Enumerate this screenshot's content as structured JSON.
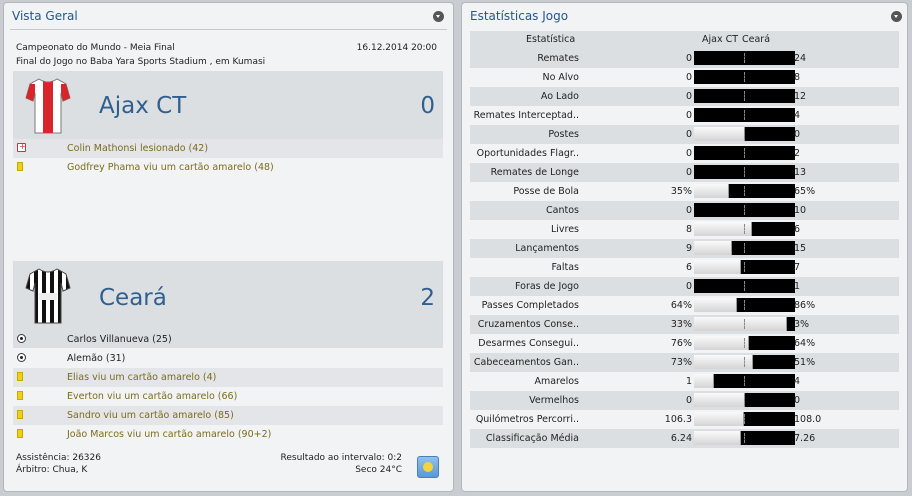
{
  "overview": {
    "title": "Vista Geral",
    "competition": "Campeonato do Mundo - Meia Final",
    "datetime": "16.12.2014 20:00",
    "venue": "Final do Jogo no Baba Yara Sports Stadium , em Kumasi",
    "home": {
      "name": "Ajax CT",
      "score": "0",
      "kit_icon": "red-white-shirt-icon",
      "events": [
        {
          "icon": "injury-icon",
          "text": "Colin Mathonsi lesionado (42)"
        },
        {
          "icon": "yellow-card-icon",
          "text": "Godfrey Phama viu um cartão amarelo (48)"
        }
      ]
    },
    "away": {
      "name": "Ceará",
      "score": "2",
      "kit_icon": "black-white-striped-shirt-icon",
      "events": [
        {
          "icon": "goal-ball-icon",
          "text": "Carlos Villanueva (25)"
        },
        {
          "icon": "goal-ball-icon",
          "text": "Alemão (31)"
        },
        {
          "icon": "yellow-card-icon",
          "text": "Elias viu um cartão amarelo (4)"
        },
        {
          "icon": "yellow-card-icon",
          "text": "Everton viu um cartão amarelo (66)"
        },
        {
          "icon": "yellow-card-icon",
          "text": "Sandro viu um cartão amarelo (85)"
        },
        {
          "icon": "yellow-card-icon",
          "text": "João Marcos viu um cartão amarelo (90+2)"
        }
      ]
    },
    "attendance": "Assistência: 26326",
    "referee": "Árbitro: Chua, K",
    "halftime": "Resultado ao intervalo: 0:2",
    "weather": "Seco 24°C",
    "weather_icon": "sunny-weather-icon"
  },
  "stats": {
    "title": "Estatísticas Jogo",
    "header_stat": "Estatística",
    "header_home": "Ajax CT",
    "header_away": "Ceará",
    "rows": [
      {
        "label": "Remates",
        "home": "0",
        "away": "24",
        "home_share": 0
      },
      {
        "label": "No Alvo",
        "home": "0",
        "away": "8",
        "home_share": 0
      },
      {
        "label": "Ao Lado",
        "home": "0",
        "away": "12",
        "home_share": 0
      },
      {
        "label": "Remates Interceptad..",
        "home": "0",
        "away": "4",
        "home_share": 0
      },
      {
        "label": "Postes",
        "home": "0",
        "away": "0",
        "home_share": 0.5
      },
      {
        "label": "Oportunidades Flagr..",
        "home": "0",
        "away": "2",
        "home_share": 0
      },
      {
        "label": "Remates de Longe",
        "home": "0",
        "away": "13",
        "home_share": 0
      },
      {
        "label": "Posse de Bola",
        "home": "35%",
        "away": "65%",
        "home_share": 0.35
      },
      {
        "label": "Cantos",
        "home": "0",
        "away": "10",
        "home_share": 0
      },
      {
        "label": "Livres",
        "home": "8",
        "away": "6",
        "home_share": 0.571
      },
      {
        "label": "Lançamentos",
        "home": "9",
        "away": "15",
        "home_share": 0.375
      },
      {
        "label": "Faltas",
        "home": "6",
        "away": "7",
        "home_share": 0.462
      },
      {
        "label": "Foras de Jogo",
        "home": "0",
        "away": "1",
        "home_share": 0
      },
      {
        "label": "Passes Completados",
        "home": "64%",
        "away": "86%",
        "home_share": 0.427
      },
      {
        "label": "Cruzamentos Conse..",
        "home": "33%",
        "away": "3%",
        "home_share": 0.917
      },
      {
        "label": "Desarmes Consegui..",
        "home": "76%",
        "away": "64%",
        "home_share": 0.543
      },
      {
        "label": "Cabeceamentos Gan..",
        "home": "73%",
        "away": "51%",
        "home_share": 0.589
      },
      {
        "label": "Amarelos",
        "home": "1",
        "away": "4",
        "home_share": 0.2
      },
      {
        "label": "Vermelhos",
        "home": "0",
        "away": "0",
        "home_share": 0.5
      },
      {
        "label": "Quilómetros Percorri..",
        "home": "106.3",
        "away": "108.0",
        "home_share": 0.496
      },
      {
        "label": "Classificação Média",
        "home": "6.24",
        "away": "7.26",
        "home_share": 0.462
      }
    ]
  }
}
